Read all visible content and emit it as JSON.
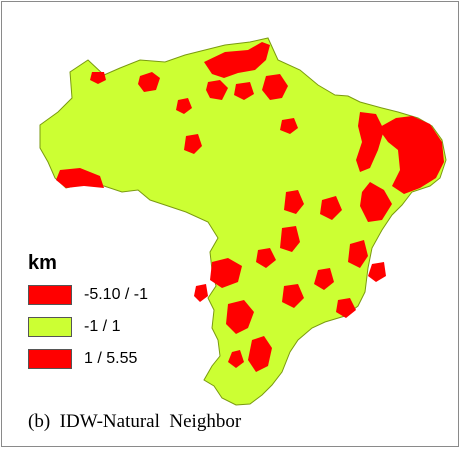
{
  "colors": {
    "negative": "#ff0000",
    "neutral": "#ccff33",
    "positive": "#ff0000",
    "outline": "#7a9a10"
  },
  "legend": {
    "title": "km",
    "items": [
      {
        "label": "-5.10 / -1",
        "color": "#ff0000"
      },
      {
        "label": "-1 / 1",
        "color": "#ccff33"
      },
      {
        "label": "1 / 5.55",
        "color": "#ff0000"
      }
    ]
  },
  "caption": "(b)  IDW-Natural  Neighbor"
}
